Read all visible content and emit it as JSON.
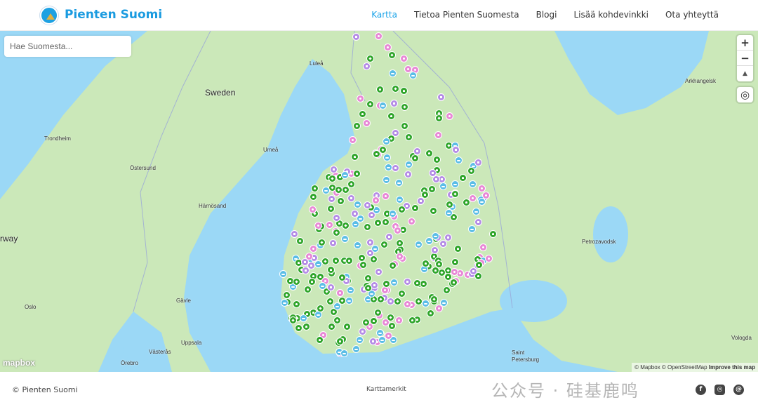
{
  "header": {
    "brand": "Pienten Suomi",
    "nav": [
      {
        "label": "Kartta",
        "active": true
      },
      {
        "label": "Tietoa Pienten Suomesta"
      },
      {
        "label": "Blogi"
      },
      {
        "label": "Lisää kohdevinkki"
      },
      {
        "label": "Ota yhteyttä"
      }
    ]
  },
  "search": {
    "placeholder": "Hae Suomesta..."
  },
  "map_controls": {
    "zoom_in": "+",
    "zoom_out": "−",
    "compass": "▲",
    "locate": "◎"
  },
  "places": {
    "sweden": "Sweden",
    "norway": "rway",
    "lulea": "Luleå",
    "umea": "Umeå",
    "trondheim": "Trondheim",
    "ostersund": "Östersund",
    "harnosand": "Härnösand",
    "gavle": "Gävle",
    "oslo": "Oslo",
    "uppsala": "Uppsala",
    "vasteras": "Västerås",
    "orebro": "Örebro",
    "stpetersburg": "Saint Petersburg",
    "petrozavodsk": "Petrozavodsk",
    "arkhangelsk": "Arkhangelsk",
    "vologda": "Vologda"
  },
  "markers": {
    "categories": [
      {
        "name": "playground",
        "color": "#2fa52a",
        "icon": "slide-icon"
      },
      {
        "name": "nature",
        "color": "#2fa52a",
        "icon": "tree-icon"
      },
      {
        "name": "animals",
        "color": "#e889d6",
        "icon": "animal-icon"
      },
      {
        "name": "swimming",
        "color": "#5bbde6",
        "icon": "swim-icon"
      },
      {
        "name": "museum",
        "color": "#b58de6",
        "icon": "museum-icon"
      }
    ]
  },
  "colors": {
    "land": "#cbe8b9",
    "water": "#9bd8f6",
    "accent": "#1aa3e8"
  },
  "logo_text": "mapbox",
  "attribution": {
    "mapbox": "© Mapbox",
    "osm": "© OpenStreetMap",
    "improve": "Improve this map"
  },
  "footer": {
    "copyright": "©  Pienten Suomi",
    "center": "Karttamerkit",
    "social": [
      "facebook-icon",
      "instagram-icon",
      "threads-icon"
    ]
  },
  "watermark": "公众号 · 硅基鹿鸣"
}
